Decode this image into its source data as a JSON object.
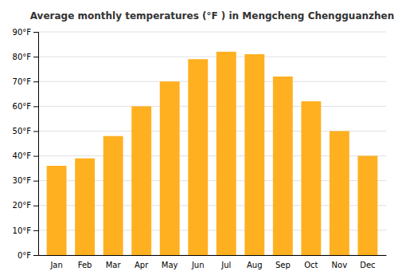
{
  "chart_data": {
    "type": "bar",
    "title": "Average monthly temperatures (°F ) in Mengcheng Chengguanzhen",
    "categories": [
      "Jan",
      "Feb",
      "Mar",
      "Apr",
      "May",
      "Jun",
      "Jul",
      "Aug",
      "Sep",
      "Oct",
      "Nov",
      "Dec"
    ],
    "values": [
      36,
      39,
      48,
      60,
      70,
      79,
      82,
      81,
      72,
      62,
      50,
      40
    ],
    "color": "#FFB020",
    "ylim": [
      0,
      90
    ],
    "yticks": [
      {
        "value": 0,
        "label": "0°F"
      },
      {
        "value": 10,
        "label": "10°F"
      },
      {
        "value": 20,
        "label": "20°F"
      },
      {
        "value": 30,
        "label": "30°F"
      },
      {
        "value": 40,
        "label": "40°F"
      },
      {
        "value": 50,
        "label": "50°F"
      },
      {
        "value": 60,
        "label": "60°F"
      },
      {
        "value": 70,
        "label": "70°F"
      },
      {
        "value": 80,
        "label": "80°F"
      },
      {
        "value": 90,
        "label": "90°F"
      }
    ],
    "grid": true
  }
}
